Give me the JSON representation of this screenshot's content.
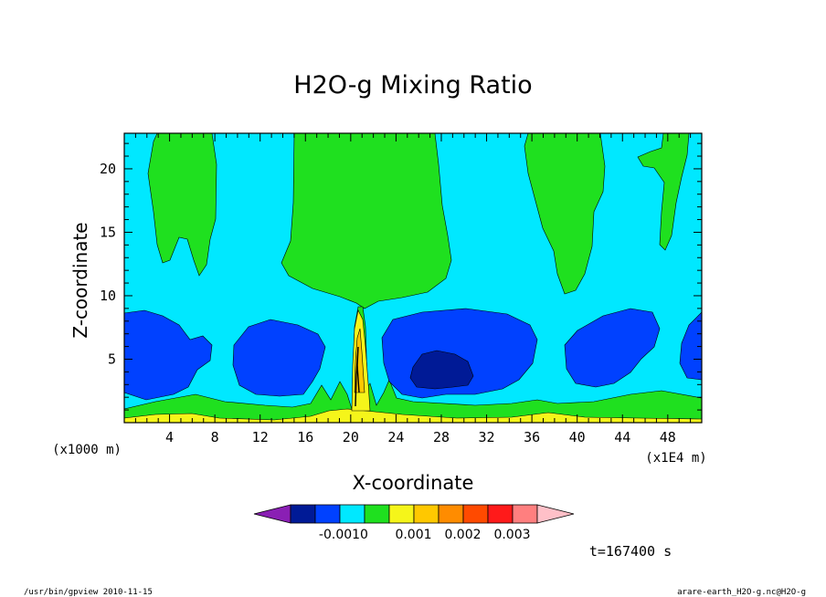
{
  "chart_data": {
    "type": "contour",
    "title": "H2O-g Mixing Ratio",
    "xlabel": "X-coordinate",
    "ylabel": "Z-coordinate",
    "x_unit_label": "(x1E4 m)",
    "y_unit_label": "(x1000 m)",
    "x_ticks": [
      "4",
      "8",
      "12",
      "16",
      "20",
      "24",
      "28",
      "32",
      "36",
      "40",
      "44",
      "48"
    ],
    "y_ticks": [
      "5",
      "10",
      "15",
      "20"
    ],
    "xlim": [
      0,
      51
    ],
    "ylim": [
      0,
      22.8
    ],
    "colorbar": {
      "colors": [
        "#8a1fb4",
        "#001a96",
        "#0041ff",
        "#00e8ff",
        "#1fe01f",
        "#f5f51a",
        "#ffc800",
        "#ff8c00",
        "#ff4a00",
        "#ff1a1a",
        "#ff7f7f",
        "#ffc0c8"
      ],
      "tick_labels": [
        "-0.001",
        "0",
        "0.001",
        "0.002",
        "0.003"
      ]
    },
    "field_colors": {
      "background": "#00e8ff",
      "moist": "#1fe01f",
      "dry": "#0041ff",
      "very_dry": "#001a96",
      "surface_moist": "#f5f51a",
      "core": "#ffc800"
    }
  },
  "time_label": "t=167400 s",
  "footer": {
    "left": "/usr/bin/gpview   2010-11-15",
    "right": "arare-earth_H2O-g.nc@H2O-g"
  }
}
